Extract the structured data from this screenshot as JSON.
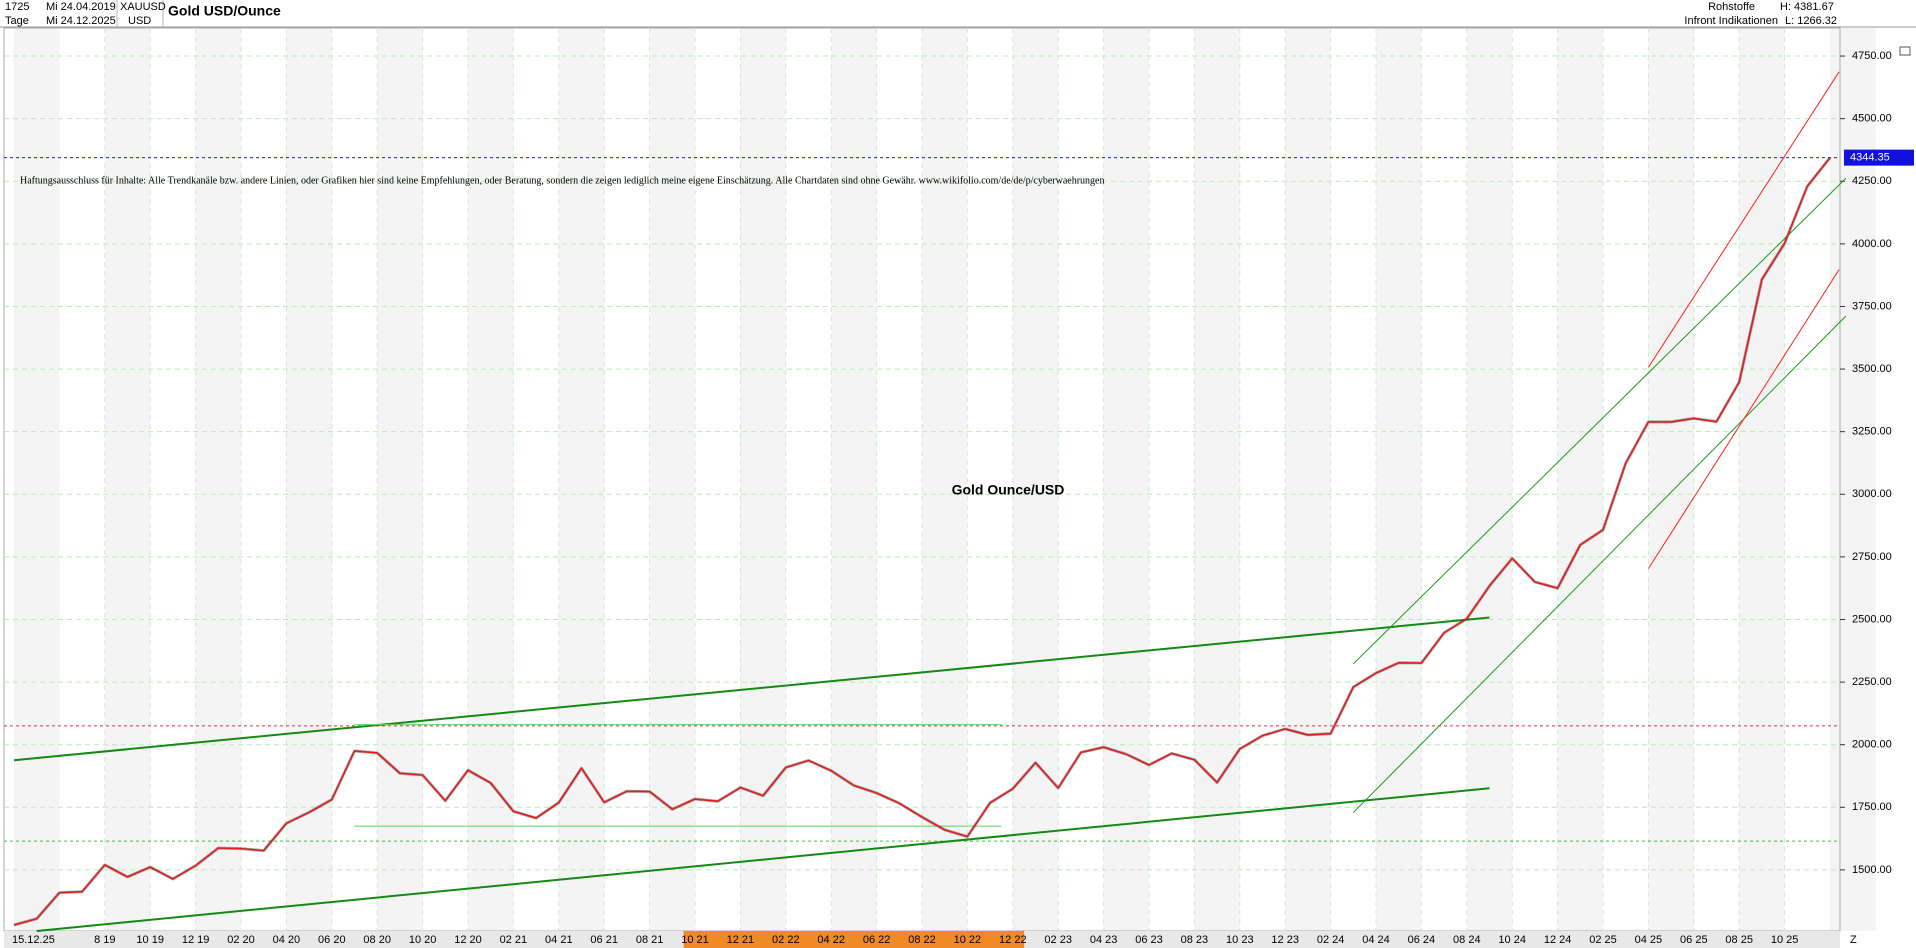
{
  "header": {
    "count": "1725",
    "start_label": "Mi 24.04.2019",
    "symbol": "XAUUSD",
    "title": "Gold USD/Ounce",
    "period": "Tage",
    "end_label": "Mi 24.12.2025",
    "currency": "USD",
    "category": "Rohstoffe",
    "high": "H: 4381.67",
    "source": "Infront Indikationen",
    "low": "L: 1266.32"
  },
  "chart_data": {
    "type": "line",
    "annotation": "Gold Ounce/USD",
    "disclaimer": "Haftungsausschluss für Inhalte: Alle Trendkanäle bzw. andere Linien, oder Grafiken hier sind keine Empfehlungen, oder Beratung, sondern die zeigen lediglich meine eigene Einschätzung. Alle Chartdaten sind ohne Gewähr.  www.wikifolio.com/de/de/p/cyberwaehrungen",
    "start_text": "15.12.25",
    "corner_text": "Z",
    "categories": [
      null,
      null,
      null,
      null,
      "8 19",
      null,
      "10 19",
      null,
      "12 19",
      null,
      "02 20",
      null,
      "04 20",
      null,
      "06 20",
      null,
      "08 20",
      null,
      "10 20",
      null,
      "12 20",
      null,
      "02 21",
      null,
      "04 21",
      null,
      "06 21",
      null,
      "08 21",
      null,
      "10 21",
      null,
      "12 21",
      null,
      "02 22",
      null,
      "04 22",
      null,
      "06 22",
      null,
      "08 22",
      null,
      "10 22",
      null,
      "12 22",
      null,
      "02 23",
      null,
      "04 23",
      null,
      "06 23",
      null,
      "08 23",
      null,
      "10 23",
      null,
      "12 23",
      null,
      "02 24",
      null,
      "04 24",
      null,
      "06 24",
      null,
      "08 24",
      null,
      "10 24",
      null,
      "12 24",
      null,
      "02 25",
      null,
      "04 25",
      null,
      "06 25",
      null,
      "08 25",
      null,
      "10 25",
      null,
      null
    ],
    "series": [
      {
        "name": "Gold USD/Ounce",
        "color": "#e02020",
        "values": [
          1280,
          1305,
          1409,
          1413,
          1520,
          1472,
          1511,
          1464,
          1517,
          1587,
          1585,
          1577,
          1686,
          1730,
          1781,
          1975,
          1967,
          1886,
          1879,
          1776,
          1898,
          1847,
          1734,
          1707,
          1769,
          1906,
          1770,
          1814,
          1813,
          1742,
          1783,
          1774,
          1829,
          1796,
          1909,
          1937,
          1896,
          1837,
          1807,
          1766,
          1711,
          1660,
          1633,
          1768,
          1824,
          1928,
          1827,
          1969,
          1990,
          1962,
          1919,
          1965,
          1940,
          1849,
          1983,
          2036,
          2063,
          2039,
          2044,
          2230,
          2286,
          2327,
          2326,
          2447,
          2503,
          2634,
          2744,
          2650,
          2625,
          2798,
          2858,
          3124,
          3289,
          3289,
          3303,
          3290,
          3448,
          3858,
          4002,
          4230,
          4344
        ]
      }
    ],
    "ylim": [
      1256,
      4862
    ],
    "yticks": [
      {
        "value": 1500,
        "label": "1500.00"
      },
      {
        "value": 1750,
        "label": "1750.00"
      },
      {
        "value": 2000,
        "label": "2000.00"
      },
      {
        "value": 2250,
        "label": "2250.00"
      },
      {
        "value": 2500,
        "label": "2500.00"
      },
      {
        "value": 2750,
        "label": "2750.00"
      },
      {
        "value": 3000,
        "label": "3000.00"
      },
      {
        "value": 3250,
        "label": "3250.00"
      },
      {
        "value": 3500,
        "label": "3500.00"
      },
      {
        "value": 3750,
        "label": "3750.00"
      },
      {
        "value": 4000,
        "label": "4000.00"
      },
      {
        "value": 4250,
        "label": "4250.00"
      },
      {
        "value": 4500,
        "label": "4500.00"
      },
      {
        "value": 4750,
        "label": "4750.00"
      }
    ],
    "grid": true,
    "last_price": 4344.35,
    "hlines": [
      {
        "value": 2075,
        "color": "#e03030"
      },
      {
        "value": 1615,
        "color": "#40c040"
      }
    ],
    "trendlines": [
      {
        "from": [
          0,
          1938
        ],
        "to": [
          65,
          2508
        ],
        "color": "#138a13",
        "width": 2
      },
      {
        "from": [
          1,
          1256
        ],
        "to": [
          65,
          1826
        ],
        "color": "#138a13",
        "width": 2
      },
      {
        "from": [
          59,
          2323
        ],
        "to": [
          80.7,
          4262
        ],
        "color": "#1a9a1a",
        "width": 1
      },
      {
        "from": [
          59,
          1729
        ],
        "to": [
          80.7,
          3712
        ],
        "color": "#1a9a1a",
        "width": 1
      },
      {
        "from": [
          72,
          3507
        ],
        "to": [
          80.4,
          4687
        ],
        "color": "#ff2020",
        "width": 1
      },
      {
        "from": [
          72,
          2703
        ],
        "to": [
          80.4,
          3897
        ],
        "color": "#ff2020",
        "width": 1
      },
      {
        "from": [
          15,
          2080
        ],
        "to": [
          43.5,
          2080
        ],
        "color": "#60d060",
        "width": 1
      },
      {
        "from": [
          15,
          1675
        ],
        "to": [
          43.5,
          1675
        ],
        "color": "#60d060",
        "width": 1
      }
    ]
  }
}
